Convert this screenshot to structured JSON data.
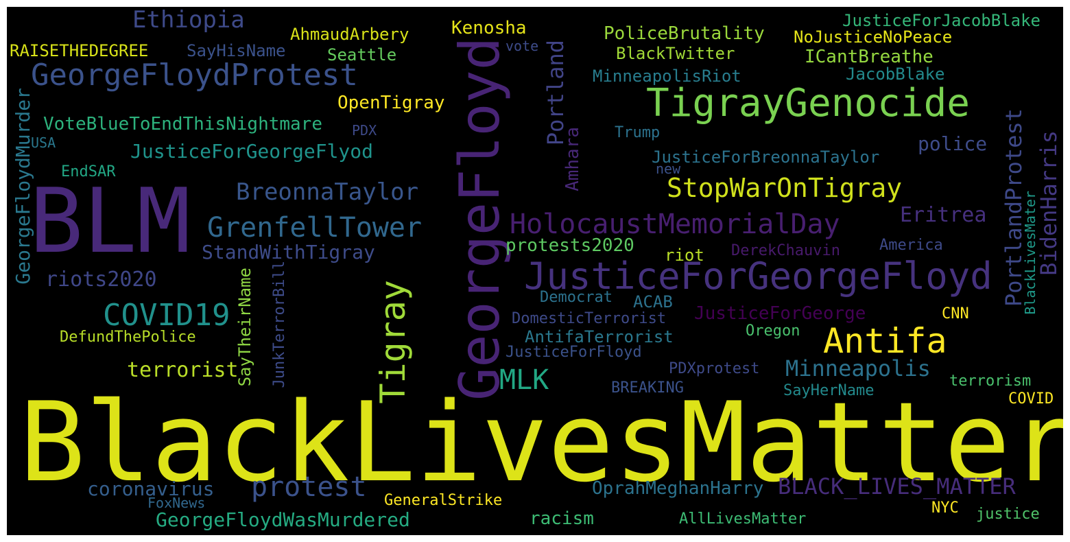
{
  "words": [
    {
      "text": "BlackLivesMatter",
      "color": "#dde318",
      "vertical": false
    },
    {
      "text": "BLM",
      "color": "#482979",
      "vertical": false
    },
    {
      "text": "GeorgeFloyd",
      "color": "#482475",
      "vertical": true
    },
    {
      "text": "TigrayGenocide",
      "color": "#7ad151",
      "vertical": false
    },
    {
      "text": "JusticeForGeorgeFloyd",
      "color": "#46327e",
      "vertical": false
    },
    {
      "text": "Antifa",
      "color": "#fde725",
      "vertical": false
    },
    {
      "text": "GeorgeFloydProtest",
      "color": "#3b528b",
      "vertical": false
    },
    {
      "text": "Tigray",
      "color": "#a0da39",
      "vertical": true
    },
    {
      "text": "HolocaustMemorialDay",
      "color": "#481f70",
      "vertical": false
    },
    {
      "text": "GrenfellTower",
      "color": "#31688e",
      "vertical": false
    },
    {
      "text": "StopWarOnTigray",
      "color": "#d0e11c",
      "vertical": false
    },
    {
      "text": "COVID19",
      "color": "#21918c",
      "vertical": false
    },
    {
      "text": "protest",
      "color": "#3b528b",
      "vertical": false
    },
    {
      "text": "BLACK_LIVES_MATTER",
      "color": "#472d7b",
      "vertical": false
    },
    {
      "text": "MLK",
      "color": "#22a884",
      "vertical": false
    },
    {
      "text": "BreonnaTaylor",
      "color": "#39568c",
      "vertical": false
    },
    {
      "text": "GeorgeFloydMurder",
      "color": "#2a788e",
      "vertical": true
    },
    {
      "text": "Ethiopia",
      "color": "#3e4a89",
      "vertical": false
    },
    {
      "text": "Portland",
      "color": "#414487",
      "vertical": true
    },
    {
      "text": "PortlandProtest",
      "color": "#3e4989",
      "vertical": true
    },
    {
      "text": "BidenHarris",
      "color": "#443983",
      "vertical": true
    },
    {
      "text": "Minneapolis",
      "color": "#2c728e",
      "vertical": false
    },
    {
      "text": "JusticeForGeorgeFlyod",
      "color": "#1f948c",
      "vertical": false
    },
    {
      "text": "Eritrea",
      "color": "#46307e",
      "vertical": false
    },
    {
      "text": "riots2020",
      "color": "#3f4788",
      "vertical": false
    },
    {
      "text": "terrorist",
      "color": "#bade28",
      "vertical": false
    },
    {
      "text": "StandWithTigray",
      "color": "#3e4c8a",
      "vertical": false
    },
    {
      "text": "VoteBlueToEndThisNightmare",
      "color": "#2db27d",
      "vertical": false
    },
    {
      "text": "police",
      "color": "#3e4c8a",
      "vertical": false
    },
    {
      "text": "Amhara",
      "color": "#482878",
      "vertical": true
    },
    {
      "text": "coronavirus",
      "color": "#355f8d",
      "vertical": false
    },
    {
      "text": "GeorgeFloydWasMurdered",
      "color": "#25ab82",
      "vertical": false
    },
    {
      "text": "OpenTigray",
      "color": "#fde725",
      "vertical": false
    },
    {
      "text": "PoliceBrutality",
      "color": "#9bd93c",
      "vertical": false
    },
    {
      "text": "protests2020",
      "color": "#5ec962",
      "vertical": false
    },
    {
      "text": "JusticeForGeorge",
      "color": "#440154",
      "vertical": false
    },
    {
      "text": "OprahMeghanHarry",
      "color": "#2c738e",
      "vertical": false
    },
    {
      "text": "JusticeForBreonnaTaylor",
      "color": "#2c738e",
      "vertical": false
    },
    {
      "text": "SayTheirName",
      "color": "#8fd744",
      "vertical": true
    },
    {
      "text": "JunkTerrorBill",
      "color": "#3e4c8a",
      "vertical": true
    },
    {
      "text": "Kenosha",
      "color": "#e5e419",
      "vertical": false
    },
    {
      "text": "AhmaudArbery",
      "color": "#d8e219",
      "vertical": false
    },
    {
      "text": "RAISETHEDEGREE",
      "color": "#d8e219",
      "vertical": false
    },
    {
      "text": "Seattle",
      "color": "#65cb5e",
      "vertical": false
    },
    {
      "text": "SayHisName",
      "color": "#3b528b",
      "vertical": false
    },
    {
      "text": "JusticeForJacobBlake",
      "color": "#35b779",
      "vertical": false
    },
    {
      "text": "NoJusticeNoPeace",
      "color": "#e5e419",
      "vertical": false
    },
    {
      "text": "BlackTwitter",
      "color": "#a2da37",
      "vertical": false
    },
    {
      "text": "ICantBreathe",
      "color": "#95d840",
      "vertical": false
    },
    {
      "text": "JacobBlake",
      "color": "#238a8d",
      "vertical": false
    },
    {
      "text": "MinneapolisRiot",
      "color": "#287d8e",
      "vertical": false
    },
    {
      "text": "DefundThePolice",
      "color": "#b8de29",
      "vertical": false
    },
    {
      "text": "AntifaTerrorist",
      "color": "#2a788e",
      "vertical": false
    },
    {
      "text": "JusticeForFloyd",
      "color": "#3b528b",
      "vertical": false
    },
    {
      "text": "DomesticTerrorist",
      "color": "#3e4a89",
      "vertical": false
    },
    {
      "text": "Democrat",
      "color": "#2c728e",
      "vertical": false
    },
    {
      "text": "ACAB",
      "color": "#2c728e",
      "vertical": false
    },
    {
      "text": "Oregon",
      "color": "#4ac16d",
      "vertical": false
    },
    {
      "text": "CNN",
      "color": "#fde725",
      "vertical": false
    },
    {
      "text": "America",
      "color": "#3e4a89",
      "vertical": false
    },
    {
      "text": "DerekChauvin",
      "color": "#481a6c",
      "vertical": false
    },
    {
      "text": "riot",
      "color": "#bade28",
      "vertical": false
    },
    {
      "text": "BlackLivesMater",
      "color": "#1f9a8a",
      "vertical": true
    },
    {
      "text": "PDXprotest",
      "color": "#3e4a89",
      "vertical": false
    },
    {
      "text": "SayHerName",
      "color": "#238a8d",
      "vertical": false
    },
    {
      "text": "terrorism",
      "color": "#4ac16d",
      "vertical": false
    },
    {
      "text": "COVID",
      "color": "#fde725",
      "vertical": false
    },
    {
      "text": "BREAKING",
      "color": "#3b528b",
      "vertical": false
    },
    {
      "text": "GeneralStrike",
      "color": "#fde725",
      "vertical": false
    },
    {
      "text": "racism",
      "color": "#3dbc74",
      "vertical": false
    },
    {
      "text": "AllLivesMatter",
      "color": "#3dbc74",
      "vertical": false
    },
    {
      "text": "NYC",
      "color": "#fde725",
      "vertical": false
    },
    {
      "text": "justice",
      "color": "#50c46a",
      "vertical": false
    },
    {
      "text": "FoxNews",
      "color": "#31688e",
      "vertical": false
    },
    {
      "text": "EndSAR",
      "color": "#22a785",
      "vertical": false
    },
    {
      "text": "USA",
      "color": "#2a788e",
      "vertical": false
    },
    {
      "text": "PDX",
      "color": "#3e4a89",
      "vertical": false
    },
    {
      "text": "vote",
      "color": "#3e4c8a",
      "vertical": false
    },
    {
      "text": "Trump",
      "color": "#2c728e",
      "vertical": false
    },
    {
      "text": "new",
      "color": "#3b528b",
      "vertical": false
    }
  ]
}
